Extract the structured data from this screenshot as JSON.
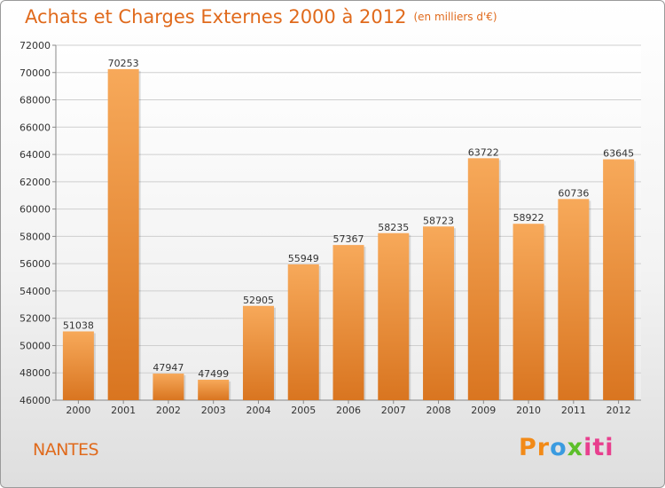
{
  "title": "Achats et Charges Externes 2000 à 2012",
  "unit": "(en milliers d'€)",
  "city": "NANTES",
  "brand": {
    "letters": [
      "Pr",
      "o",
      "x",
      "iti"
    ]
  },
  "colors": {
    "bar_light": "#f7a95a",
    "bar_dark": "#d97520",
    "title": "#e06a1c"
  },
  "chart_data": {
    "type": "bar",
    "categories": [
      "2000",
      "2001",
      "2002",
      "2003",
      "2004",
      "2005",
      "2006",
      "2007",
      "2008",
      "2009",
      "2010",
      "2011",
      "2012"
    ],
    "values": [
      51038,
      70253,
      47947,
      47499,
      52905,
      55949,
      57367,
      58235,
      58723,
      63722,
      58922,
      60736,
      63645
    ],
    "title": "Achats et Charges Externes 2000 à 2012",
    "ylim": [
      46000,
      72000
    ],
    "yticks": [
      46000,
      48000,
      50000,
      52000,
      54000,
      56000,
      58000,
      60000,
      62000,
      64000,
      66000,
      68000,
      70000,
      72000
    ],
    "grid": true
  }
}
